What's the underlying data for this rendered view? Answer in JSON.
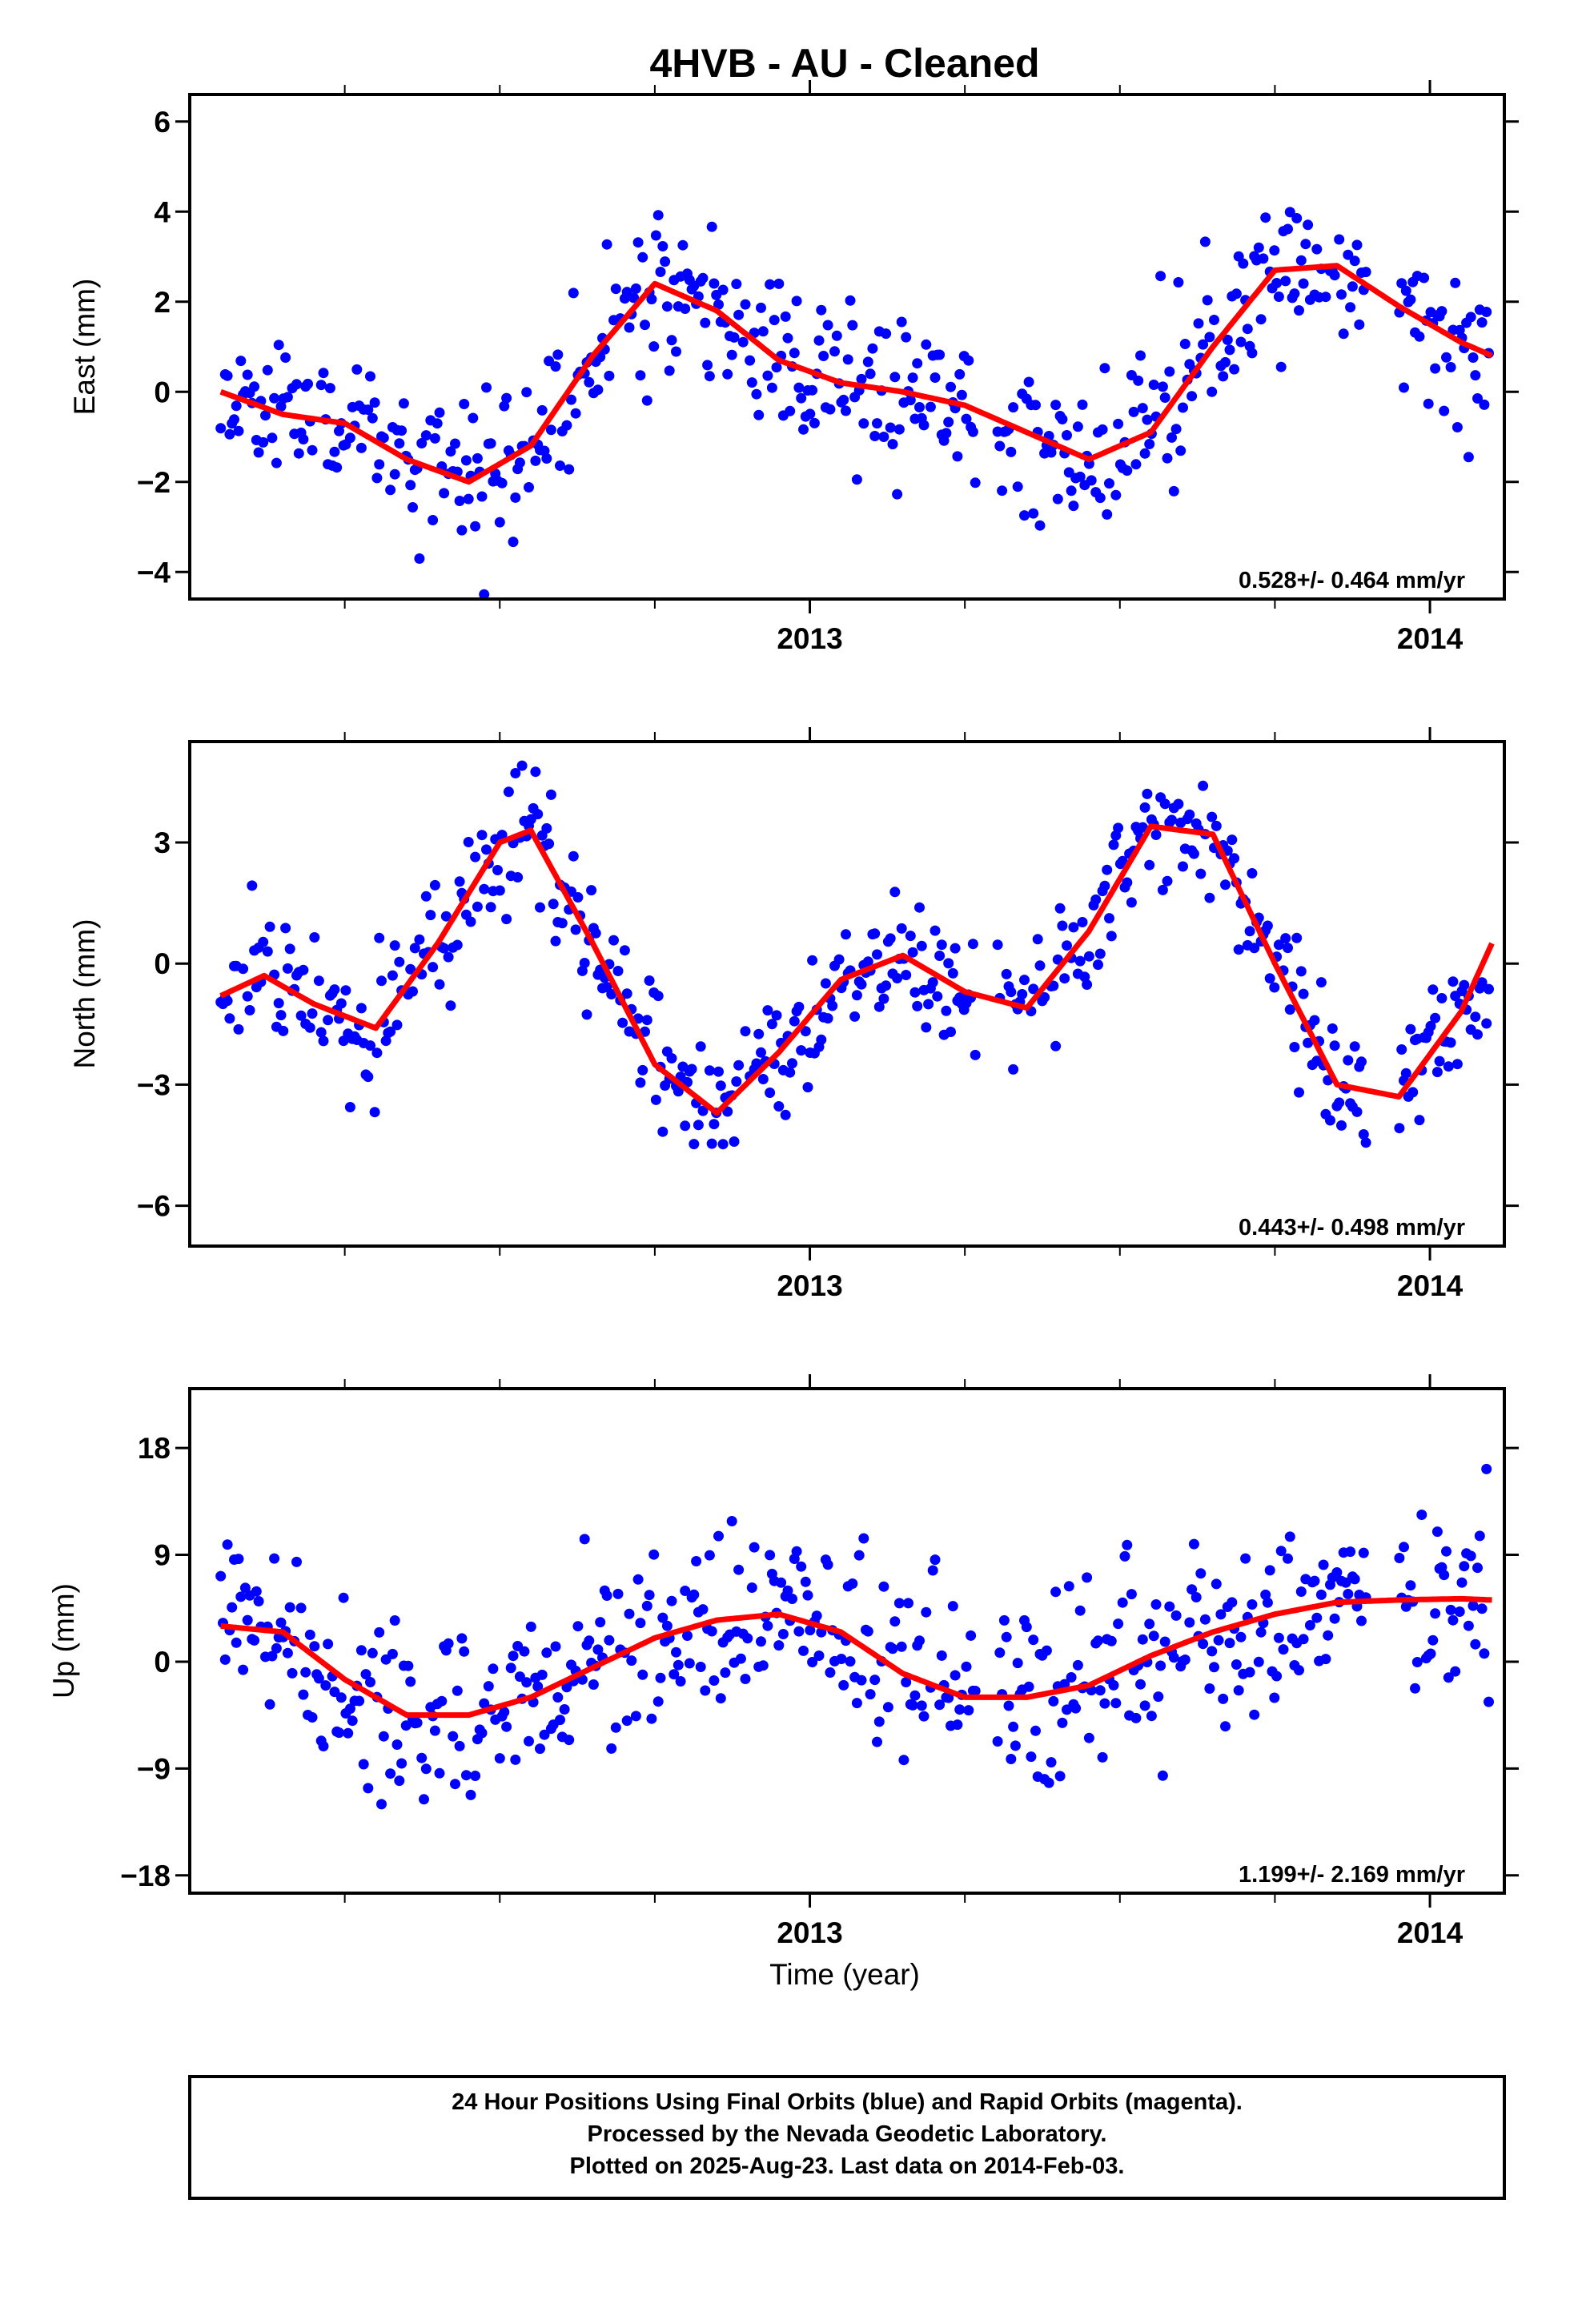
{
  "title": "4HVB  - AU - Cleaned",
  "x_axis_label": "Time (year)",
  "footer": {
    "line1": "24 Hour Positions Using Final Orbits (blue) and Rapid Orbits (magenta).",
    "line2": "Processed by the Nevada Geodetic Laboratory.",
    "line3": "Plotted on 2025-Aug-23. Last data on 2014-Feb-03."
  },
  "colors": {
    "points": "#0000ff",
    "fit": "#ff0000",
    "frame": "#000000"
  },
  "chart_data": [
    {
      "type": "scatter",
      "ylabel": "East (mm)",
      "rate_text": "0.528+/- 0.464 mm/yr",
      "xlim": [
        2012.0,
        2014.12
      ],
      "ylim": [
        -4.6,
        6.6
      ],
      "yticks": [
        -4,
        -2,
        0,
        2,
        4,
        6
      ],
      "ytick_labels": [
        "−4",
        "−2",
        "0",
        "2",
        "4",
        "6"
      ],
      "xtick_labels": [
        {
          "x": 2013,
          "label": "2013"
        },
        {
          "x": 2014,
          "label": "2014"
        }
      ],
      "minor_xticks": [
        2012.25,
        2012.5,
        2012.75,
        2013.25,
        2013.5,
        2013.75
      ],
      "fit": {
        "x": [
          2012.05,
          2012.15,
          2012.25,
          2012.35,
          2012.45,
          2012.55,
          2012.65,
          2012.75,
          2012.85,
          2012.95,
          2013.05,
          2013.15,
          2013.25,
          2013.35,
          2013.45,
          2013.55,
          2013.65,
          2013.75,
          2013.85,
          2013.95,
          2014.05,
          2014.1
        ],
        "y": [
          0.0,
          -0.5,
          -0.7,
          -1.5,
          -2.0,
          -1.2,
          0.8,
          2.4,
          1.8,
          0.7,
          0.2,
          0.0,
          -0.3,
          -0.9,
          -1.5,
          -0.9,
          1.0,
          2.7,
          2.8,
          1.9,
          1.1,
          0.8
        ]
      }
    },
    {
      "type": "scatter",
      "ylabel": "North (mm)",
      "rate_text": "0.443+/- 0.498 mm/yr",
      "xlim": [
        2012.0,
        2014.12
      ],
      "ylim": [
        -7.0,
        5.5
      ],
      "yticks": [
        -6,
        -3,
        0,
        3
      ],
      "ytick_labels": [
        "−6",
        "−3",
        "0",
        "3"
      ],
      "xtick_labels": [
        {
          "x": 2013,
          "label": "2013"
        },
        {
          "x": 2014,
          "label": "2014"
        }
      ],
      "minor_xticks": [
        2012.25,
        2012.5,
        2012.75,
        2013.25,
        2013.5,
        2013.75
      ],
      "fit": {
        "x": [
          2012.05,
          2012.12,
          2012.2,
          2012.3,
          2012.4,
          2012.5,
          2012.55,
          2012.65,
          2012.75,
          2012.85,
          2012.95,
          2013.05,
          2013.15,
          2013.25,
          2013.35,
          2013.45,
          2013.55,
          2013.65,
          2013.75,
          2013.85,
          2013.95,
          2014.05,
          2014.1
        ],
        "y": [
          -0.8,
          -0.3,
          -1.0,
          -1.6,
          0.5,
          3.0,
          3.3,
          0.5,
          -2.5,
          -3.7,
          -2.2,
          -0.4,
          0.2,
          -0.7,
          -1.1,
          0.8,
          3.4,
          3.2,
          0.0,
          -3.0,
          -3.3,
          -1.2,
          0.5
        ]
      }
    },
    {
      "type": "scatter",
      "ylabel": "Up (mm)",
      "rate_text": "1.199+/- 2.169 mm/yr",
      "xlim": [
        2012.0,
        2014.12
      ],
      "ylim": [
        -19.5,
        23.0
      ],
      "yticks": [
        -18,
        -9,
        0,
        9,
        18
      ],
      "ytick_labels": [
        "−18",
        "−9",
        "0",
        "9",
        "18"
      ],
      "xtick_labels": [
        {
          "x": 2013,
          "label": "2013"
        },
        {
          "x": 2014,
          "label": "2014"
        }
      ],
      "minor_xticks": [
        2012.25,
        2012.5,
        2012.75,
        2013.25,
        2013.5,
        2013.75
      ],
      "fit": {
        "x": [
          2012.05,
          2012.15,
          2012.25,
          2012.35,
          2012.45,
          2012.55,
          2012.65,
          2012.75,
          2012.85,
          2012.95,
          2013.05,
          2013.15,
          2013.25,
          2013.35,
          2013.45,
          2013.55,
          2013.65,
          2013.75,
          2013.85,
          2013.95,
          2014.05,
          2014.1
        ],
        "y": [
          3.0,
          2.5,
          -1.5,
          -4.5,
          -4.5,
          -3.0,
          -0.5,
          2.0,
          3.5,
          4.0,
          2.5,
          -1.0,
          -3.0,
          -3.0,
          -2.0,
          0.5,
          2.5,
          4.0,
          5.0,
          5.2,
          5.3,
          5.2
        ]
      }
    }
  ]
}
